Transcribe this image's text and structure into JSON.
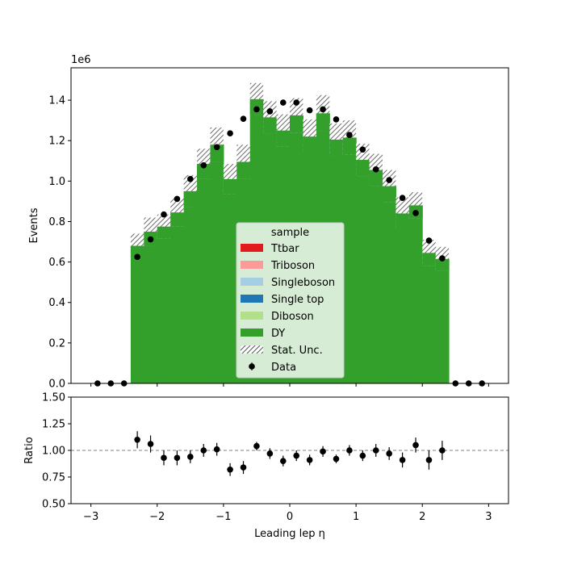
{
  "chart_data": [
    {
      "type": "histogram",
      "panel": "main",
      "x": [
        -2.3,
        -2.1,
        -1.9,
        -1.7,
        -1.5,
        -1.3,
        -1.1,
        -0.9,
        -0.7,
        -0.5,
        -0.3,
        -0.1,
        0.1,
        0.3,
        0.5,
        0.7,
        0.9,
        1.1,
        1.3,
        1.5,
        1.7,
        1.9,
        2.1,
        2.3
      ],
      "bin_edges": [
        -2.4,
        -2.2,
        -2.0,
        -1.8,
        -1.6,
        -1.4,
        -1.2,
        -1.0,
        -0.8,
        -0.6,
        -0.4,
        -0.2,
        0.0,
        0.2,
        0.4,
        0.6,
        0.8,
        1.0,
        1.2,
        1.4,
        1.6,
        1.8,
        2.0,
        2.2,
        2.4
      ],
      "stacked": true,
      "series": [
        {
          "name": "DY",
          "color": "#33a02c",
          "values": [
            680000,
            750000,
            775000,
            845000,
            950000,
            1085000,
            1180000,
            1010000,
            1095000,
            1405000,
            1315000,
            1250000,
            1325000,
            1220000,
            1335000,
            1205000,
            1215000,
            1105000,
            1055000,
            975000,
            840000,
            880000,
            645000,
            615000
          ]
        },
        {
          "name": "Diboson",
          "color": "#b2df8a",
          "values": [
            0,
            0,
            0,
            0,
            0,
            0,
            0,
            0,
            0,
            0,
            0,
            0,
            0,
            0,
            0,
            0,
            0,
            0,
            0,
            0,
            0,
            0,
            0,
            0
          ]
        },
        {
          "name": "Single top",
          "color": "#1f78b4",
          "values": [
            0,
            0,
            0,
            0,
            0,
            0,
            0,
            0,
            0,
            0,
            0,
            0,
            0,
            0,
            0,
            0,
            0,
            0,
            0,
            0,
            0,
            0,
            0,
            0
          ]
        },
        {
          "name": "Singleboson",
          "color": "#a6cee3",
          "values": [
            0,
            0,
            0,
            0,
            0,
            0,
            0,
            0,
            0,
            0,
            0,
            0,
            0,
            0,
            0,
            0,
            0,
            0,
            0,
            0,
            0,
            0,
            0,
            0
          ]
        },
        {
          "name": "Triboson",
          "color": "#fb9a99",
          "values": [
            0,
            0,
            0,
            0,
            0,
            0,
            0,
            0,
            0,
            0,
            0,
            0,
            0,
            0,
            0,
            0,
            0,
            0,
            0,
            0,
            0,
            0,
            0,
            0
          ]
        },
        {
          "name": "Ttbar",
          "color": "#e31a1c",
          "values": [
            0,
            0,
            0,
            0,
            0,
            0,
            0,
            0,
            0,
            0,
            0,
            0,
            0,
            0,
            0,
            0,
            0,
            0,
            0,
            0,
            0,
            0,
            0,
            0
          ]
        }
      ],
      "stat_unc_up": [
        740000,
        820000,
        835000,
        915000,
        1030000,
        1160000,
        1265000,
        1085000,
        1180000,
        1485000,
        1395000,
        1330000,
        1410000,
        1305000,
        1425000,
        1285000,
        1300000,
        1185000,
        1135000,
        1055000,
        920000,
        945000,
        710000,
        675000
      ],
      "data": {
        "name": "Data",
        "x": [
          -2.9,
          -2.7,
          -2.5,
          -2.3,
          -2.1,
          -1.9,
          -1.7,
          -1.5,
          -1.3,
          -1.1,
          -0.9,
          -0.7,
          -0.5,
          -0.3,
          -0.1,
          0.1,
          0.3,
          0.5,
          0.7,
          0.9,
          1.1,
          1.3,
          1.5,
          1.7,
          1.9,
          2.1,
          2.3,
          2.5,
          2.7,
          2.9
        ],
        "y": [
          0,
          0,
          0,
          625000,
          712000,
          835000,
          912000,
          1010000,
          1078000,
          1168000,
          1236000,
          1308000,
          1355000,
          1345000,
          1388000,
          1388000,
          1350000,
          1355000,
          1305000,
          1228000,
          1156000,
          1058000,
          1005000,
          917000,
          842000,
          706000,
          618000,
          0,
          0,
          0
        ]
      },
      "legend": {
        "title": "sample",
        "entries": [
          "Ttbar",
          "Triboson",
          "Singleboson",
          "Single top",
          "Diboson",
          "DY",
          "Stat. Unc.",
          "Data"
        ],
        "placement": "lower-center"
      },
      "ylabel": "Events",
      "y_offset_label": "1e6",
      "xlim": [
        -3.3,
        3.3
      ],
      "ylim": [
        0,
        1560000
      ],
      "yticks": [
        "0.0",
        "0.2",
        "0.4",
        "0.6",
        "0.8",
        "1.0",
        "1.2",
        "1.4"
      ],
      "grid": false
    },
    {
      "type": "scatter",
      "panel": "ratio",
      "ylabel": "Ratio",
      "xlabel": "Leading lep η",
      "x": [
        -2.3,
        -2.1,
        -1.9,
        -1.7,
        -1.5,
        -1.3,
        -1.1,
        -0.9,
        -0.7,
        -0.5,
        -0.3,
        -0.1,
        0.1,
        0.3,
        0.5,
        0.7,
        0.9,
        1.1,
        1.3,
        1.5,
        1.7,
        1.9,
        2.1,
        2.3
      ],
      "y": [
        1.1,
        1.06,
        0.93,
        0.93,
        0.94,
        1.0,
        1.01,
        0.82,
        0.84,
        1.04,
        0.97,
        0.9,
        0.95,
        0.91,
        0.99,
        0.92,
        1.0,
        0.95,
        1.0,
        0.97,
        0.91,
        1.05,
        0.91,
        1.0
      ],
      "yerr": [
        0.08,
        0.08,
        0.07,
        0.07,
        0.06,
        0.06,
        0.06,
        0.06,
        0.06,
        0.04,
        0.05,
        0.05,
        0.05,
        0.05,
        0.05,
        0.04,
        0.05,
        0.05,
        0.06,
        0.06,
        0.07,
        0.07,
        0.09,
        0.09
      ],
      "reference_line": 1.0,
      "xlim": [
        -3.3,
        3.3
      ],
      "ylim": [
        0.5,
        1.5
      ],
      "xticks": [
        "−3",
        "−2",
        "−1",
        "0",
        "1",
        "2",
        "3"
      ],
      "yticks": [
        "0.50",
        "0.75",
        "1.00",
        "1.25",
        "1.50"
      ],
      "grid": false
    }
  ]
}
